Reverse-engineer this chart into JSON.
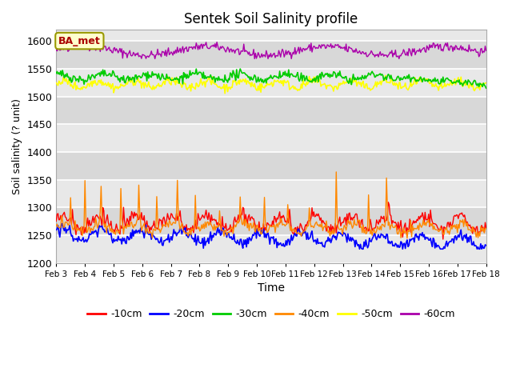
{
  "title": "Sentek Soil Salinity profile",
  "xlabel": "Time",
  "ylabel": "Soil salinity (? unit)",
  "ylim": [
    1200,
    1620
  ],
  "yticks": [
    1200,
    1250,
    1300,
    1350,
    1400,
    1450,
    1500,
    1550,
    1600
  ],
  "x_labels": [
    "Feb 3",
    "Feb 4",
    "Feb 5",
    "Feb 6",
    "Feb 7",
    "Feb 8",
    "Feb 9",
    "Feb 10",
    "Feb 11",
    "Feb 12",
    "Feb 13",
    "Feb 14",
    "Feb 15",
    "Feb 16",
    "Feb 17",
    "Feb 18"
  ],
  "colors": {
    "-10cm": "#ff0000",
    "-20cm": "#0000ff",
    "-30cm": "#00cc00",
    "-40cm": "#ff8800",
    "-50cm": "#ffff00",
    "-60cm": "#aa00aa"
  },
  "legend_label": "BA_met",
  "plot_bg_color": "#e8e8e8",
  "band_color_dark": "#d8d8d8",
  "band_color_light": "#e8e8e8",
  "n_points": 480,
  "seed": 42
}
